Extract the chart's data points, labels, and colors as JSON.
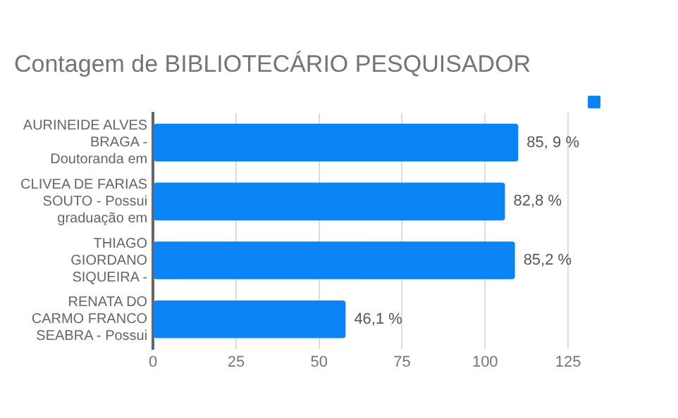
{
  "chart_data": {
    "type": "bar",
    "orientation": "horizontal",
    "title": "Contagem de BIBLIOTECÁRIO PESQUISADOR",
    "categories": [
      "AURINEIDE ALVES BRAGA - Doutoranda em",
      "CLIVEA DE FARIAS SOUTO - Possui graduação em",
      "THIAGO GIORDANO SIQUEIRA -",
      "RENATA DO CARMO FRANCO SEABRA - Possui"
    ],
    "series": [
      {
        "color": "#0a84f5",
        "values": [
          110,
          106,
          109,
          58
        ]
      }
    ],
    "annotations": [
      {
        "text": "85, 9 %",
        "x": 110,
        "y": "AURINEIDE ALVES BRAGA - Doutoranda em"
      },
      {
        "text": "82,8 %",
        "x": 106,
        "y": "CLIVEA DE FARIAS SOUTO - Possui graduação em"
      },
      {
        "text": "85,2 %",
        "x": 109,
        "y": "THIAGO GIORDANO SIQUEIRA -"
      },
      {
        "text": "46,1 %",
        "x": 58,
        "y": "RENATA DO CARMO FRANCO SEABRA - Possui"
      }
    ],
    "xlim": [
      0,
      125
    ],
    "xticks": [
      0,
      25,
      50,
      75,
      100,
      125
    ],
    "grid": "x"
  }
}
